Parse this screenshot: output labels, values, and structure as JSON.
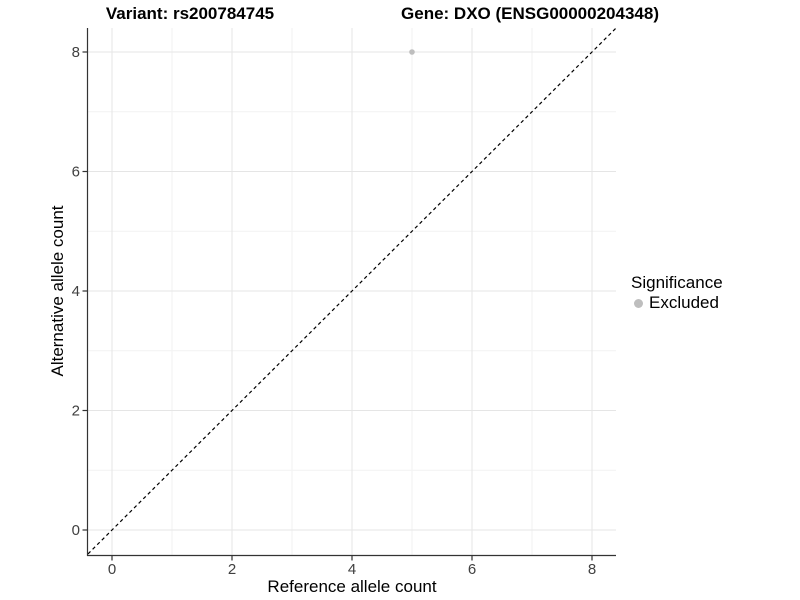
{
  "chart_data": {
    "type": "scatter",
    "title_left": "Variant: rs200784745",
    "title_right": "Gene: DXO (ENSG00000204348)",
    "xlabel": "Reference allele count",
    "ylabel": "Alternative allele count",
    "xlim": [
      -0.4,
      8.4
    ],
    "ylim": [
      -0.4,
      8.4
    ],
    "x_ticks": [
      0,
      2,
      4,
      6,
      8
    ],
    "y_ticks": [
      0,
      2,
      4,
      6,
      8
    ],
    "x_minor_ticks": [
      1,
      3,
      5,
      7
    ],
    "y_minor_ticks": [
      1,
      3,
      5,
      7
    ],
    "grid": "on",
    "legend_position": "right",
    "legend": {
      "title": "Significance",
      "items": [
        {
          "label": "Excluded",
          "color": "#bebebe"
        }
      ]
    },
    "series": [
      {
        "name": "Excluded",
        "color": "#bebebe",
        "points": [
          {
            "x": 5,
            "y": 8
          }
        ]
      }
    ],
    "reference_line": {
      "kind": "identity",
      "slope": 1,
      "intercept": 0,
      "line_style": "dashed",
      "color": "#000000"
    },
    "style": {
      "background": "#ffffff",
      "grid_major": "#e5e5e5",
      "grid_minor": "#f2f2f2",
      "axis_line": "#333333",
      "tick_text": "#404040",
      "title_text": "#000000"
    }
  }
}
